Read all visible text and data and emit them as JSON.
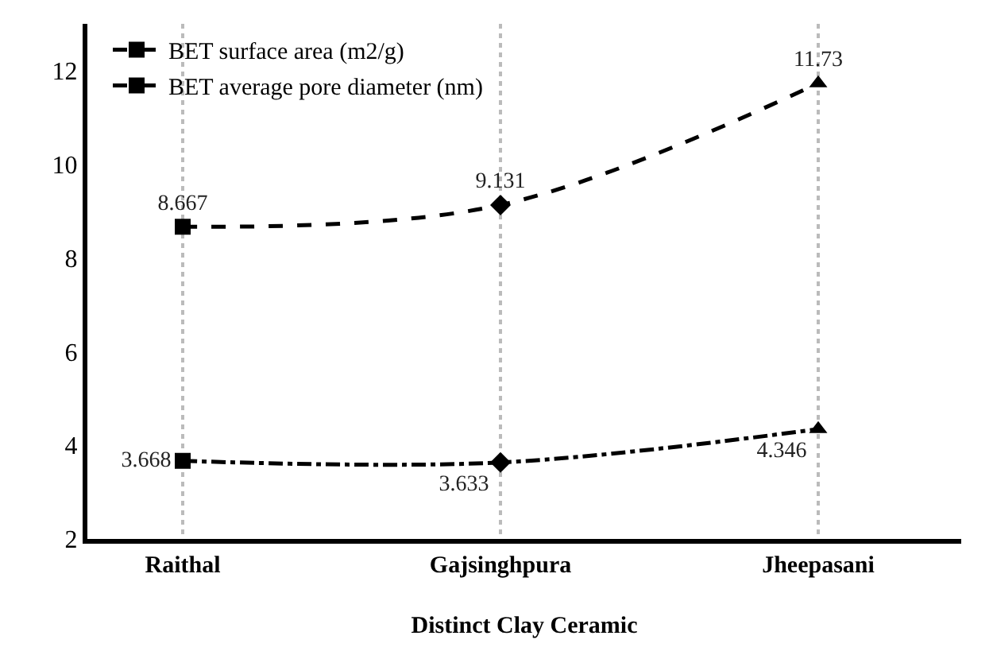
{
  "chart_data": {
    "type": "line",
    "xlabel": "Distinct Clay Ceramic",
    "categories": [
      "Raithal",
      "Gajsinghpura",
      "Jheepasani"
    ],
    "series": [
      {
        "name": "BET surface area (m2/g)",
        "color": "#000000",
        "values": [
          8.667,
          9.131,
          11.73
        ],
        "line_style": "dashed",
        "marker": [
          "square",
          "diamond",
          "triangle"
        ]
      },
      {
        "name": "BET average pore diameter (nm)",
        "color": "#000000",
        "values": [
          3.668,
          3.633,
          4.346
        ],
        "line_style": "dashdot",
        "marker": [
          "square",
          "diamond",
          "triangle"
        ]
      }
    ],
    "ylim": [
      2,
      13
    ],
    "yticks": [
      2,
      4,
      6,
      8,
      10,
      12
    ],
    "grid": "x",
    "legend": "top left",
    "data_labels": true
  }
}
